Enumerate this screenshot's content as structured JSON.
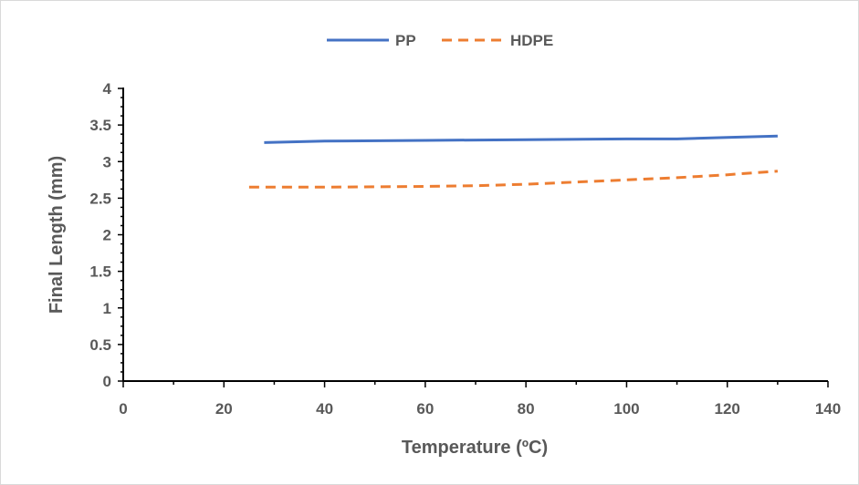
{
  "chart_data": {
    "type": "line",
    "title": "",
    "xlabel": "Temperature (ºC)",
    "ylabel": "Final Length (mm)",
    "xlim": [
      0,
      140
    ],
    "ylim": [
      0,
      4
    ],
    "x_ticks": [
      "0",
      "20",
      "40",
      "60",
      "80",
      "100",
      "120",
      "140"
    ],
    "y_ticks": [
      "0",
      "0.5",
      "1",
      "1.5",
      "2",
      "2.5",
      "3",
      "3.5",
      "4"
    ],
    "x_tick_values": [
      0,
      20,
      40,
      60,
      80,
      100,
      120,
      140
    ],
    "y_tick_values": [
      0,
      0.5,
      1,
      1.5,
      2,
      2.5,
      3,
      3.5,
      4
    ],
    "grid": false,
    "legend_position": "top",
    "series": [
      {
        "name": "PP",
        "color": "#4472c4",
        "style": "solid",
        "x": [
          28,
          40,
          60,
          80,
          100,
          110,
          120,
          130
        ],
        "y": [
          3.26,
          3.28,
          3.29,
          3.3,
          3.31,
          3.31,
          3.33,
          3.35
        ]
      },
      {
        "name": "HDPE",
        "color": "#ed7d31",
        "style": "dashed",
        "x": [
          25,
          40,
          60,
          70,
          80,
          90,
          100,
          110,
          120,
          130
        ],
        "y": [
          2.65,
          2.65,
          2.66,
          2.67,
          2.69,
          2.72,
          2.75,
          2.78,
          2.82,
          2.87
        ]
      }
    ]
  }
}
